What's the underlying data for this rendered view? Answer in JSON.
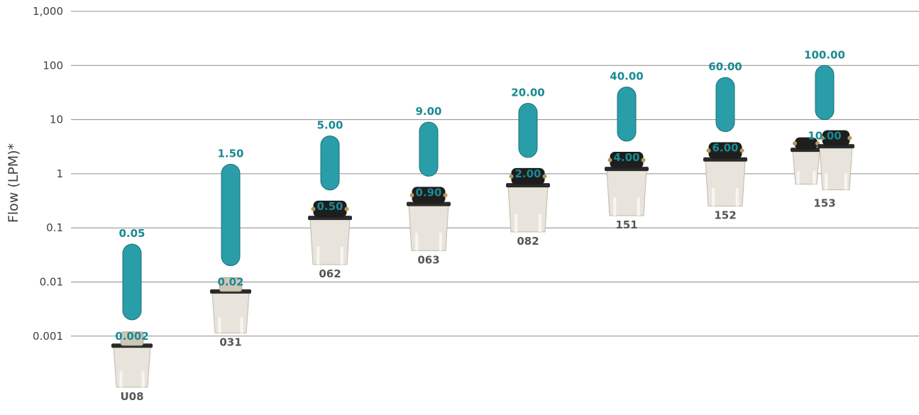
{
  "chart_data": {
    "type": "bar",
    "subtype": "floating-range",
    "ylabel": "Flow (LPM)*",
    "yscale": "log",
    "ylim": [
      0.001,
      1000
    ],
    "yticks": [
      1000,
      100,
      10,
      1,
      0.1,
      0.01,
      0.001
    ],
    "ytick_labels": [
      "1,000",
      "100",
      "10",
      "1",
      "0.1",
      "0.01",
      "0.001"
    ],
    "grid": true,
    "categories": [
      "U08",
      "031",
      "062",
      "063",
      "082",
      "151",
      "152",
      "153"
    ],
    "series": [
      {
        "low": [
          0.002,
          0.02,
          0.5,
          0.9,
          2.0,
          4.0,
          6.0,
          10.0
        ],
        "high": [
          0.05,
          1.5,
          5.0,
          9.0,
          20.0,
          40.0,
          60.0,
          100.0
        ],
        "low_labels": [
          "0.002",
          "0.02",
          "0.50",
          "0.90",
          "2.00",
          "4.00",
          "6.00",
          "10.00"
        ],
        "high_labels": [
          "0.05",
          "1.50",
          "5.00",
          "9.00",
          "20.00",
          "40.00",
          "60.00",
          "100.00"
        ]
      }
    ],
    "colors": {
      "bar": "#2a9ea8",
      "bar_edge": "#1c6f78",
      "label": "#1a8a93",
      "grid": "#8c8c8c",
      "category": "#555555"
    }
  }
}
